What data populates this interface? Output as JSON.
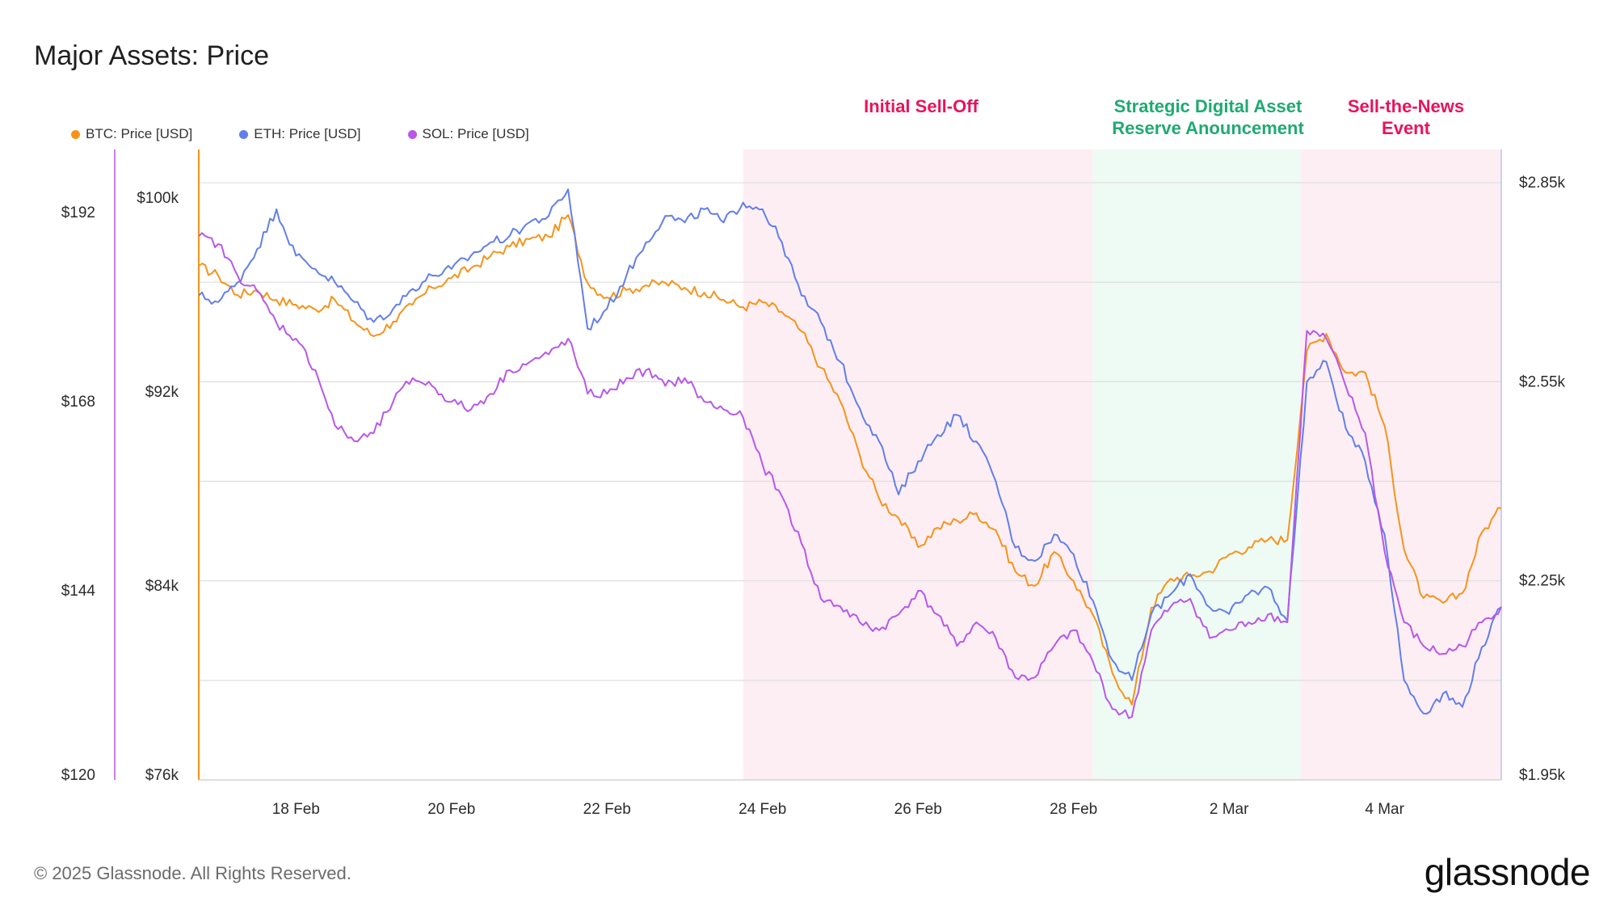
{
  "title": "Major Assets: Price",
  "footer": "© 2025 Glassnode. All Rights Reserved.",
  "logo": "glassnode",
  "chart_data": {
    "type": "line",
    "title": "Major Assets: Price",
    "legend_position": "top-left",
    "grid": true,
    "x_range": [
      "2025-02-16T18:00",
      "2025-03-05T12:00"
    ],
    "x_ticks": [
      "18 Feb",
      "20 Feb",
      "22 Feb",
      "24 Feb",
      "26 Feb",
      "28 Feb",
      "2 Mar",
      "4 Mar"
    ],
    "axes": {
      "sol": {
        "side": "left-outer",
        "range": [
          120,
          200
        ],
        "ticks": [
          "$120",
          "$144",
          "$168",
          "$192"
        ]
      },
      "btc": {
        "side": "left-inner",
        "range": [
          76000,
          102000
        ],
        "ticks": [
          "$76k",
          "$84k",
          "$92k",
          "$100k"
        ]
      },
      "eth": {
        "side": "right",
        "range": [
          1950,
          2900
        ],
        "ticks": [
          "$1.95k",
          "$2.25k",
          "$2.55k",
          "$2.85k"
        ]
      }
    },
    "regions": [
      {
        "label_lines": [
          "Initial Sell-Off"
        ],
        "start": "2025-02-23T18:00",
        "end": "2025-02-28T06:00",
        "color": "#e8135d",
        "fill": "#fdeef4"
      },
      {
        "label_lines": [
          "Strategic Digital Asset",
          "Reserve Anouncement"
        ],
        "start": "2025-02-28T06:00",
        "end": "2025-03-02T22:00",
        "color": "#1faa72",
        "fill": "#eefaf4"
      },
      {
        "label_lines": [
          "Sell-the-News",
          "Event"
        ],
        "start": "2025-03-02T22:00",
        "end": "2025-03-05T12:00",
        "color": "#e8135d",
        "fill": "#fdeef4"
      }
    ],
    "series": [
      {
        "name": "BTC: Price [USD]",
        "axis": "btc",
        "color": "#f7931a",
        "x": [
          "2025-02-16T18:00",
          "2025-02-17T00:00",
          "2025-02-17T06:00",
          "2025-02-17T12:00",
          "2025-02-17T18:00",
          "2025-02-18T00:00",
          "2025-02-18T06:00",
          "2025-02-18T12:00",
          "2025-02-18T18:00",
          "2025-02-19T00:00",
          "2025-02-19T06:00",
          "2025-02-19T12:00",
          "2025-02-19T18:00",
          "2025-02-20T00:00",
          "2025-02-20T06:00",
          "2025-02-20T12:00",
          "2025-02-20T18:00",
          "2025-02-21T00:00",
          "2025-02-21T06:00",
          "2025-02-21T12:00",
          "2025-02-21T18:00",
          "2025-02-22T00:00",
          "2025-02-22T06:00",
          "2025-02-22T12:00",
          "2025-02-22T18:00",
          "2025-02-23T00:00",
          "2025-02-23T06:00",
          "2025-02-23T12:00",
          "2025-02-23T18:00",
          "2025-02-24T00:00",
          "2025-02-24T06:00",
          "2025-02-24T12:00",
          "2025-02-24T18:00",
          "2025-02-25T00:00",
          "2025-02-25T06:00",
          "2025-02-25T12:00",
          "2025-02-25T18:00",
          "2025-02-26T00:00",
          "2025-02-26T06:00",
          "2025-02-26T12:00",
          "2025-02-26T18:00",
          "2025-02-27T00:00",
          "2025-02-27T06:00",
          "2025-02-27T12:00",
          "2025-02-27T18:00",
          "2025-02-28T00:00",
          "2025-02-28T06:00",
          "2025-02-28T12:00",
          "2025-02-28T18:00",
          "2025-03-01T00:00",
          "2025-03-01T06:00",
          "2025-03-01T12:00",
          "2025-03-01T18:00",
          "2025-03-02T00:00",
          "2025-03-02T06:00",
          "2025-03-02T12:00",
          "2025-03-02T18:00",
          "2025-03-03T00:00",
          "2025-03-03T06:00",
          "2025-03-03T12:00",
          "2025-03-03T18:00",
          "2025-03-04T00:00",
          "2025-03-04T06:00",
          "2025-03-04T12:00",
          "2025-03-04T18:00",
          "2025-03-05T00:00",
          "2025-03-05T06:00",
          "2025-03-05T12:00"
        ],
        "values": [
          97200,
          96800,
          96000,
          96200,
          95800,
          95600,
          95400,
          95800,
          94900,
          94300,
          94900,
          95600,
          96300,
          96700,
          97100,
          97600,
          98000,
          98300,
          98400,
          99300,
          96500,
          95900,
          96200,
          96400,
          96500,
          96300,
          96100,
          95800,
          95500,
          95700,
          95300,
          94500,
          93000,
          91600,
          89400,
          87600,
          86800,
          85600,
          86400,
          86700,
          87000,
          86300,
          84600,
          84000,
          85400,
          84200,
          82800,
          80400,
          79100,
          83100,
          84300,
          84400,
          84600,
          85300,
          85600,
          85900,
          85900,
          93700,
          94400,
          92800,
          92800,
          90600,
          85500,
          83500,
          83300,
          83700,
          86200,
          87200
        ]
      },
      {
        "name": "ETH: Price [USD]",
        "axis": "eth",
        "color": "#627eea",
        "x": [
          "2025-02-16T18:00",
          "2025-02-17T00:00",
          "2025-02-17T06:00",
          "2025-02-17T12:00",
          "2025-02-17T18:00",
          "2025-02-18T00:00",
          "2025-02-18T06:00",
          "2025-02-18T12:00",
          "2025-02-18T18:00",
          "2025-02-19T00:00",
          "2025-02-19T06:00",
          "2025-02-19T12:00",
          "2025-02-19T18:00",
          "2025-02-20T00:00",
          "2025-02-20T06:00",
          "2025-02-20T12:00",
          "2025-02-20T18:00",
          "2025-02-21T00:00",
          "2025-02-21T06:00",
          "2025-02-21T12:00",
          "2025-02-21T18:00",
          "2025-02-22T00:00",
          "2025-02-22T06:00",
          "2025-02-22T12:00",
          "2025-02-22T18:00",
          "2025-02-23T00:00",
          "2025-02-23T06:00",
          "2025-02-23T12:00",
          "2025-02-23T18:00",
          "2025-02-24T00:00",
          "2025-02-24T06:00",
          "2025-02-24T12:00",
          "2025-02-24T18:00",
          "2025-02-25T00:00",
          "2025-02-25T06:00",
          "2025-02-25T12:00",
          "2025-02-25T18:00",
          "2025-02-26T00:00",
          "2025-02-26T06:00",
          "2025-02-26T12:00",
          "2025-02-26T18:00",
          "2025-02-27T00:00",
          "2025-02-27T06:00",
          "2025-02-27T12:00",
          "2025-02-27T18:00",
          "2025-02-28T00:00",
          "2025-02-28T06:00",
          "2025-02-28T12:00",
          "2025-02-28T18:00",
          "2025-03-01T00:00",
          "2025-03-01T06:00",
          "2025-03-01T12:00",
          "2025-03-01T18:00",
          "2025-03-02T00:00",
          "2025-03-02T06:00",
          "2025-03-02T12:00",
          "2025-03-02T18:00",
          "2025-03-03T00:00",
          "2025-03-03T06:00",
          "2025-03-03T12:00",
          "2025-03-03T18:00",
          "2025-03-04T00:00",
          "2025-03-04T06:00",
          "2025-03-04T12:00",
          "2025-03-04T18:00",
          "2025-03-05T00:00",
          "2025-03-05T06:00",
          "2025-03-05T12:00"
        ],
        "values": [
          2680,
          2670,
          2700,
          2750,
          2810,
          2740,
          2720,
          2700,
          2670,
          2640,
          2660,
          2690,
          2710,
          2720,
          2740,
          2760,
          2770,
          2790,
          2800,
          2840,
          2630,
          2660,
          2710,
          2760,
          2800,
          2790,
          2810,
          2790,
          2820,
          2810,
          2760,
          2680,
          2640,
          2580,
          2510,
          2460,
          2380,
          2430,
          2470,
          2500,
          2460,
          2400,
          2300,
          2280,
          2320,
          2290,
          2220,
          2130,
          2100,
          2200,
          2230,
          2260,
          2210,
          2200,
          2230,
          2240,
          2190,
          2550,
          2580,
          2480,
          2430,
          2320,
          2100,
          2050,
          2080,
          2060,
          2150,
          2210
        ]
      },
      {
        "name": "SOL: Price [USD]",
        "axis": "sol",
        "color": "#b857ea",
        "x": [
          "2025-02-16T18:00",
          "2025-02-17T00:00",
          "2025-02-17T06:00",
          "2025-02-17T12:00",
          "2025-02-17T18:00",
          "2025-02-18T00:00",
          "2025-02-18T06:00",
          "2025-02-18T12:00",
          "2025-02-18T18:00",
          "2025-02-19T00:00",
          "2025-02-19T06:00",
          "2025-02-19T12:00",
          "2025-02-19T18:00",
          "2025-02-20T00:00",
          "2025-02-20T06:00",
          "2025-02-20T12:00",
          "2025-02-20T18:00",
          "2025-02-21T00:00",
          "2025-02-21T06:00",
          "2025-02-21T12:00",
          "2025-02-21T18:00",
          "2025-02-22T00:00",
          "2025-02-22T06:00",
          "2025-02-22T12:00",
          "2025-02-22T18:00",
          "2025-02-23T00:00",
          "2025-02-23T06:00",
          "2025-02-23T12:00",
          "2025-02-23T18:00",
          "2025-02-24T00:00",
          "2025-02-24T06:00",
          "2025-02-24T12:00",
          "2025-02-24T18:00",
          "2025-02-25T00:00",
          "2025-02-25T06:00",
          "2025-02-25T12:00",
          "2025-02-25T18:00",
          "2025-02-26T00:00",
          "2025-02-26T06:00",
          "2025-02-26T12:00",
          "2025-02-26T18:00",
          "2025-02-27T00:00",
          "2025-02-27T06:00",
          "2025-02-27T12:00",
          "2025-02-27T18:00",
          "2025-02-28T00:00",
          "2025-02-28T06:00",
          "2025-02-28T12:00",
          "2025-02-28T18:00",
          "2025-03-01T00:00",
          "2025-03-01T06:00",
          "2025-03-01T12:00",
          "2025-03-01T18:00",
          "2025-03-02T00:00",
          "2025-03-02T06:00",
          "2025-03-02T12:00",
          "2025-03-02T18:00",
          "2025-03-03T00:00",
          "2025-03-03T06:00",
          "2025-03-03T12:00",
          "2025-03-03T18:00",
          "2025-03-04T00:00",
          "2025-03-04T06:00",
          "2025-03-04T12:00",
          "2025-03-04T18:00",
          "2025-03-05T00:00",
          "2025-03-05T06:00",
          "2025-03-05T12:00"
        ],
        "values": [
          189,
          188,
          184,
          182,
          178,
          176,
          172,
          165,
          163,
          164,
          168,
          171,
          170,
          168,
          167,
          169,
          172,
          173,
          174,
          176,
          169,
          169,
          171,
          172,
          170,
          171,
          168,
          167,
          166,
          160,
          156,
          150,
          143,
          142,
          140,
          139,
          141,
          144,
          141,
          137,
          140,
          138,
          133,
          133,
          137,
          139,
          135,
          129,
          128,
          139,
          142,
          143,
          138,
          139,
          140,
          141,
          140,
          177,
          176,
          170,
          164,
          149,
          140,
          137,
          136,
          137,
          140,
          142
        ]
      }
    ]
  }
}
